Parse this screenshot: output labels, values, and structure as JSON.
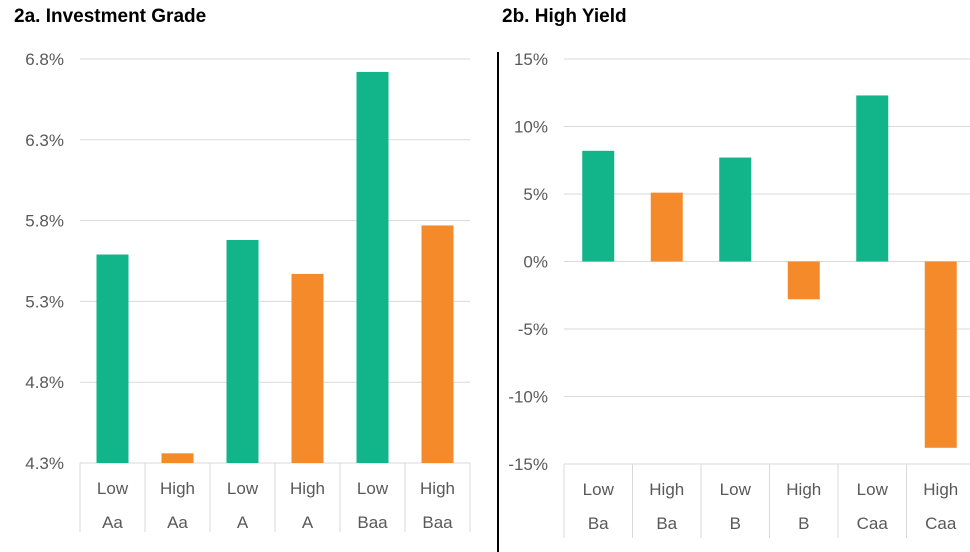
{
  "colors": {
    "low": "#12b48a",
    "high": "#f58a2a",
    "grid": "#d9d9d9",
    "divider": "#000000"
  },
  "chart_data": [
    {
      "type": "bar",
      "title": "2a. Investment Grade",
      "categories": [
        {
          "top": "Low",
          "bottom": "Aa"
        },
        {
          "top": "High",
          "bottom": "Aa"
        },
        {
          "top": "Low",
          "bottom": "A"
        },
        {
          "top": "High",
          "bottom": "A"
        },
        {
          "top": "Low",
          "bottom": "Baa"
        },
        {
          "top": "High",
          "bottom": "Baa"
        }
      ],
      "values": [
        5.59,
        4.36,
        5.68,
        5.47,
        6.72,
        5.77
      ],
      "bar_groups": [
        "low",
        "high",
        "low",
        "high",
        "low",
        "high"
      ],
      "ylim": [
        4.3,
        6.8
      ],
      "yticks": [
        4.3,
        4.8,
        5.3,
        5.8,
        6.3,
        6.8
      ],
      "ytick_labels": [
        "4.3%",
        "4.8%",
        "5.3%",
        "5.8%",
        "6.3%",
        "6.8%"
      ]
    },
    {
      "type": "bar",
      "title": "2b. High Yield",
      "categories": [
        {
          "top": "Low",
          "bottom": "Ba"
        },
        {
          "top": "High",
          "bottom": "Ba"
        },
        {
          "top": "Low",
          "bottom": "B"
        },
        {
          "top": "High",
          "bottom": "B"
        },
        {
          "top": "Low",
          "bottom": "Caa"
        },
        {
          "top": "High",
          "bottom": "Caa"
        }
      ],
      "values": [
        8.2,
        5.1,
        7.7,
        -2.8,
        12.3,
        -13.8
      ],
      "bar_groups": [
        "low",
        "high",
        "low",
        "high",
        "low",
        "high"
      ],
      "ylim": [
        -15,
        15
      ],
      "yticks": [
        -15,
        -10,
        -5,
        0,
        5,
        10,
        15
      ],
      "ytick_labels": [
        "-15%",
        "-10%",
        "-5%",
        "0%",
        "5%",
        "10%",
        "15%"
      ]
    }
  ]
}
